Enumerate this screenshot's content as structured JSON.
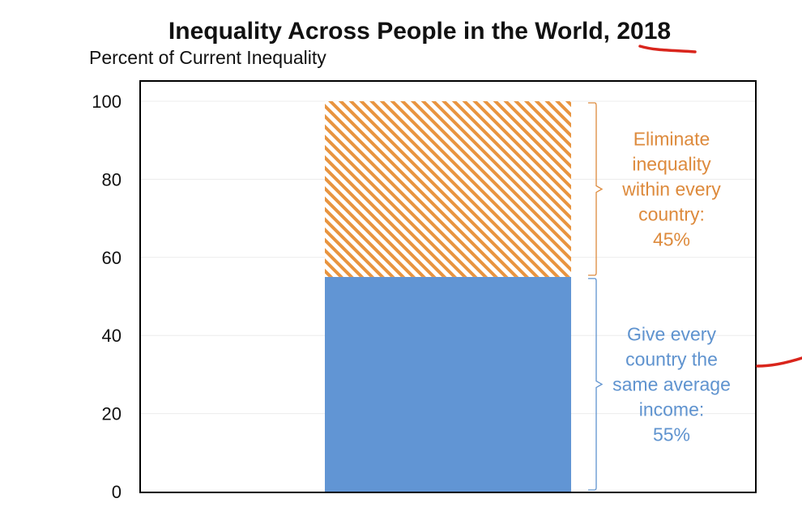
{
  "chart_data": {
    "type": "bar",
    "stacked": true,
    "title": "Inequality Across People in the World, 2018",
    "ylabel": "Percent of Current Inequality",
    "xlabel": "",
    "ylim": [
      0,
      100
    ],
    "yticks": [
      "0",
      "20",
      "40",
      "60",
      "80",
      "100"
    ],
    "grid": true,
    "series": [
      {
        "values": [
          55
        ],
        "color": "#6195d4",
        "fill": "solid"
      },
      {
        "values": [
          45
        ],
        "color": "#e8943f",
        "fill": "hatched"
      }
    ],
    "annotations": [
      {
        "lines": [
          "Give every",
          "country the",
          "same average",
          "income:",
          "55%"
        ],
        "color": "#5f93cf",
        "range": [
          0,
          55
        ]
      },
      {
        "lines": [
          "Eliminate",
          "inequality",
          "within every",
          "country:",
          "45%"
        ],
        "color": "#dd8a3c",
        "range": [
          55,
          100
        ]
      }
    ]
  },
  "marks": {
    "underline_color": "#d9251c"
  }
}
